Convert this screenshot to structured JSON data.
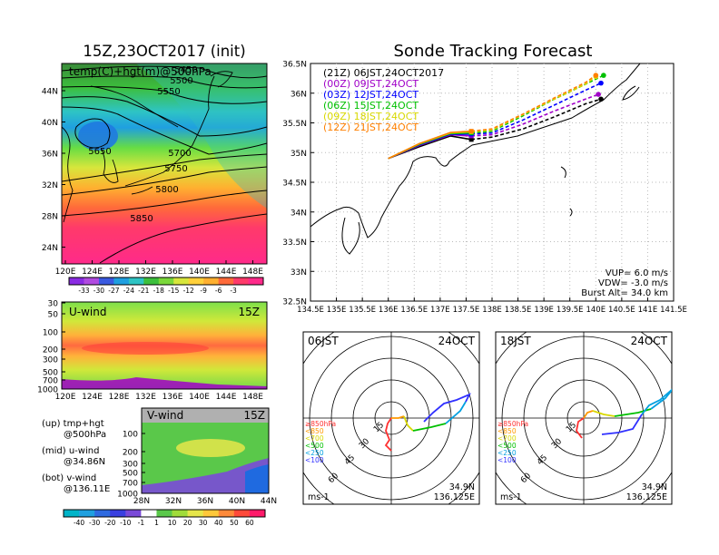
{
  "titles": {
    "left": "15Z,23OCT2017 (init)",
    "right": "Sonde Tracking Forecast"
  },
  "left_map": {
    "inner_label": "temp(C)+hgt(m)@500hPa",
    "y_ticks": [
      "44N",
      "40N",
      "36N",
      "32N",
      "28N",
      "24N"
    ],
    "x_ticks": [
      "120E",
      "124E",
      "128E",
      "132E",
      "136E",
      "140E",
      "144E",
      "148E"
    ],
    "contour_labels": [
      "5450",
      "5500",
      "5550",
      "5650",
      "5700",
      "5750",
      "5800",
      "5850"
    ],
    "colorbar_labels": [
      "-33",
      "-30",
      "-27",
      "-24",
      "-21",
      "-18",
      "-15",
      "-12",
      "-9",
      "-6",
      "-3"
    ]
  },
  "u_panel": {
    "label": "U-wind",
    "time": "15Z",
    "y_ticks": [
      "30",
      "50",
      "100",
      "200",
      "300",
      "500",
      "700",
      "1000"
    ],
    "x_ticks": [
      "120E",
      "124E",
      "128E",
      "132E",
      "136E",
      "140E",
      "144E",
      "148E"
    ]
  },
  "v_panel": {
    "label": "V-wind",
    "time": "15Z",
    "y_ticks": [
      "100",
      "200",
      "300",
      "500",
      "700",
      "1000"
    ],
    "x_ticks": [
      "28N",
      "32N",
      "36N",
      "40N",
      "44N"
    ],
    "colorbar_labels": [
      "-40",
      "-30",
      "-20",
      "-10",
      "-1",
      "1",
      "10",
      "20",
      "30",
      "40",
      "50",
      "60"
    ]
  },
  "captions": [
    "(up) tmp+hgt",
    "@500hPa",
    "(mid) u-wind",
    "@34.86N",
    "(bot) v-wind",
    "@136.11E"
  ],
  "track_map": {
    "y_ticks": [
      "36.5N",
      "36N",
      "35.5N",
      "35N",
      "34.5N",
      "34N",
      "33.5N",
      "33N",
      "32.5N"
    ],
    "x_ticks": [
      "134.5E",
      "135E",
      "135.5E",
      "136E",
      "136.5E",
      "137E",
      "137.5E",
      "138E",
      "138.5E",
      "139E",
      "139.5E",
      "140E",
      "140.5E",
      "141E",
      "141.5E"
    ],
    "params": [
      "VUP= 6.0 m/s",
      "VDW= -3.0 m/s",
      "Burst Alt= 34.0 km"
    ]
  },
  "chart_data": {
    "type": "line",
    "title": "Sonde Tracking Forecast",
    "xlim": [
      134.5,
      141.5
    ],
    "ylim": [
      32.5,
      36.5
    ],
    "series": [
      {
        "name": "(21Z) 06JST,24OCT2017",
        "color": "#000000",
        "x": [
          136.0,
          136.6,
          137.2,
          137.6,
          138.0,
          138.6,
          139.2,
          139.8,
          140.1
        ],
        "y": [
          34.9,
          35.1,
          35.28,
          35.22,
          35.26,
          35.4,
          35.6,
          35.82,
          35.9
        ]
      },
      {
        "name": "(00Z) 09JST,24OCT",
        "color": "#a000c8",
        "x": [
          136.0,
          136.6,
          137.2,
          137.6,
          138.0,
          138.6,
          139.2,
          139.8,
          140.05
        ],
        "y": [
          34.9,
          35.12,
          35.3,
          35.28,
          35.3,
          35.48,
          35.7,
          35.9,
          35.98
        ]
      },
      {
        "name": "(03Z) 12JST,24OCT",
        "color": "#0000ff",
        "x": [
          136.0,
          136.6,
          137.2,
          137.6,
          138.0,
          138.6,
          139.2,
          139.8,
          140.1
        ],
        "y": [
          34.9,
          35.13,
          35.31,
          35.31,
          35.33,
          35.55,
          35.8,
          36.05,
          36.17
        ]
      },
      {
        "name": "(06Z) 15JST,24OCT",
        "color": "#00c000",
        "x": [
          136.0,
          136.6,
          137.2,
          137.6,
          138.0,
          138.6,
          139.2,
          139.8,
          140.15
        ],
        "y": [
          34.9,
          35.14,
          35.32,
          35.33,
          35.36,
          35.62,
          35.9,
          36.15,
          36.3
        ]
      },
      {
        "name": "(09Z) 18JST,24OCT",
        "color": "#d8d800",
        "x": [
          136.0,
          136.6,
          137.2,
          137.6,
          138.0,
          138.6,
          139.2,
          139.8,
          140.0
        ],
        "y": [
          34.9,
          35.15,
          35.33,
          35.35,
          35.38,
          35.64,
          35.9,
          36.15,
          36.28
        ]
      },
      {
        "name": "(12Z) 21JST,24OCT",
        "color": "#ff8000",
        "x": [
          136.0,
          136.6,
          137.2,
          137.6,
          138.0,
          138.6,
          139.2,
          139.8,
          140.0
        ],
        "y": [
          34.9,
          35.15,
          35.34,
          35.36,
          35.4,
          35.65,
          35.92,
          36.18,
          36.3
        ]
      }
    ]
  },
  "polar_panels": [
    {
      "time": "06JST",
      "date": "24OCT",
      "lat": "34.9N",
      "lon": "136.125E",
      "unit": "ms-1",
      "ring_labels": [
        "15",
        "30",
        "45",
        "60"
      ],
      "legend": [
        "≥850hPa",
        "<850",
        "<700",
        "<500",
        "<250",
        "<100"
      ]
    },
    {
      "time": "18JST",
      "date": "24OCT",
      "lat": "34.9N",
      "lon": "136.125E",
      "unit": "ms-1",
      "ring_labels": [
        "15",
        "30",
        "45",
        "60"
      ],
      "legend": [
        "≥850hPa",
        "<850",
        "<700",
        "<500",
        "<250",
        "<100"
      ]
    }
  ],
  "colors": {
    "legend_pressure": [
      "#ff3030",
      "#ff9900",
      "#d8d800",
      "#00c000",
      "#00a0e0",
      "#3030ff"
    ]
  }
}
